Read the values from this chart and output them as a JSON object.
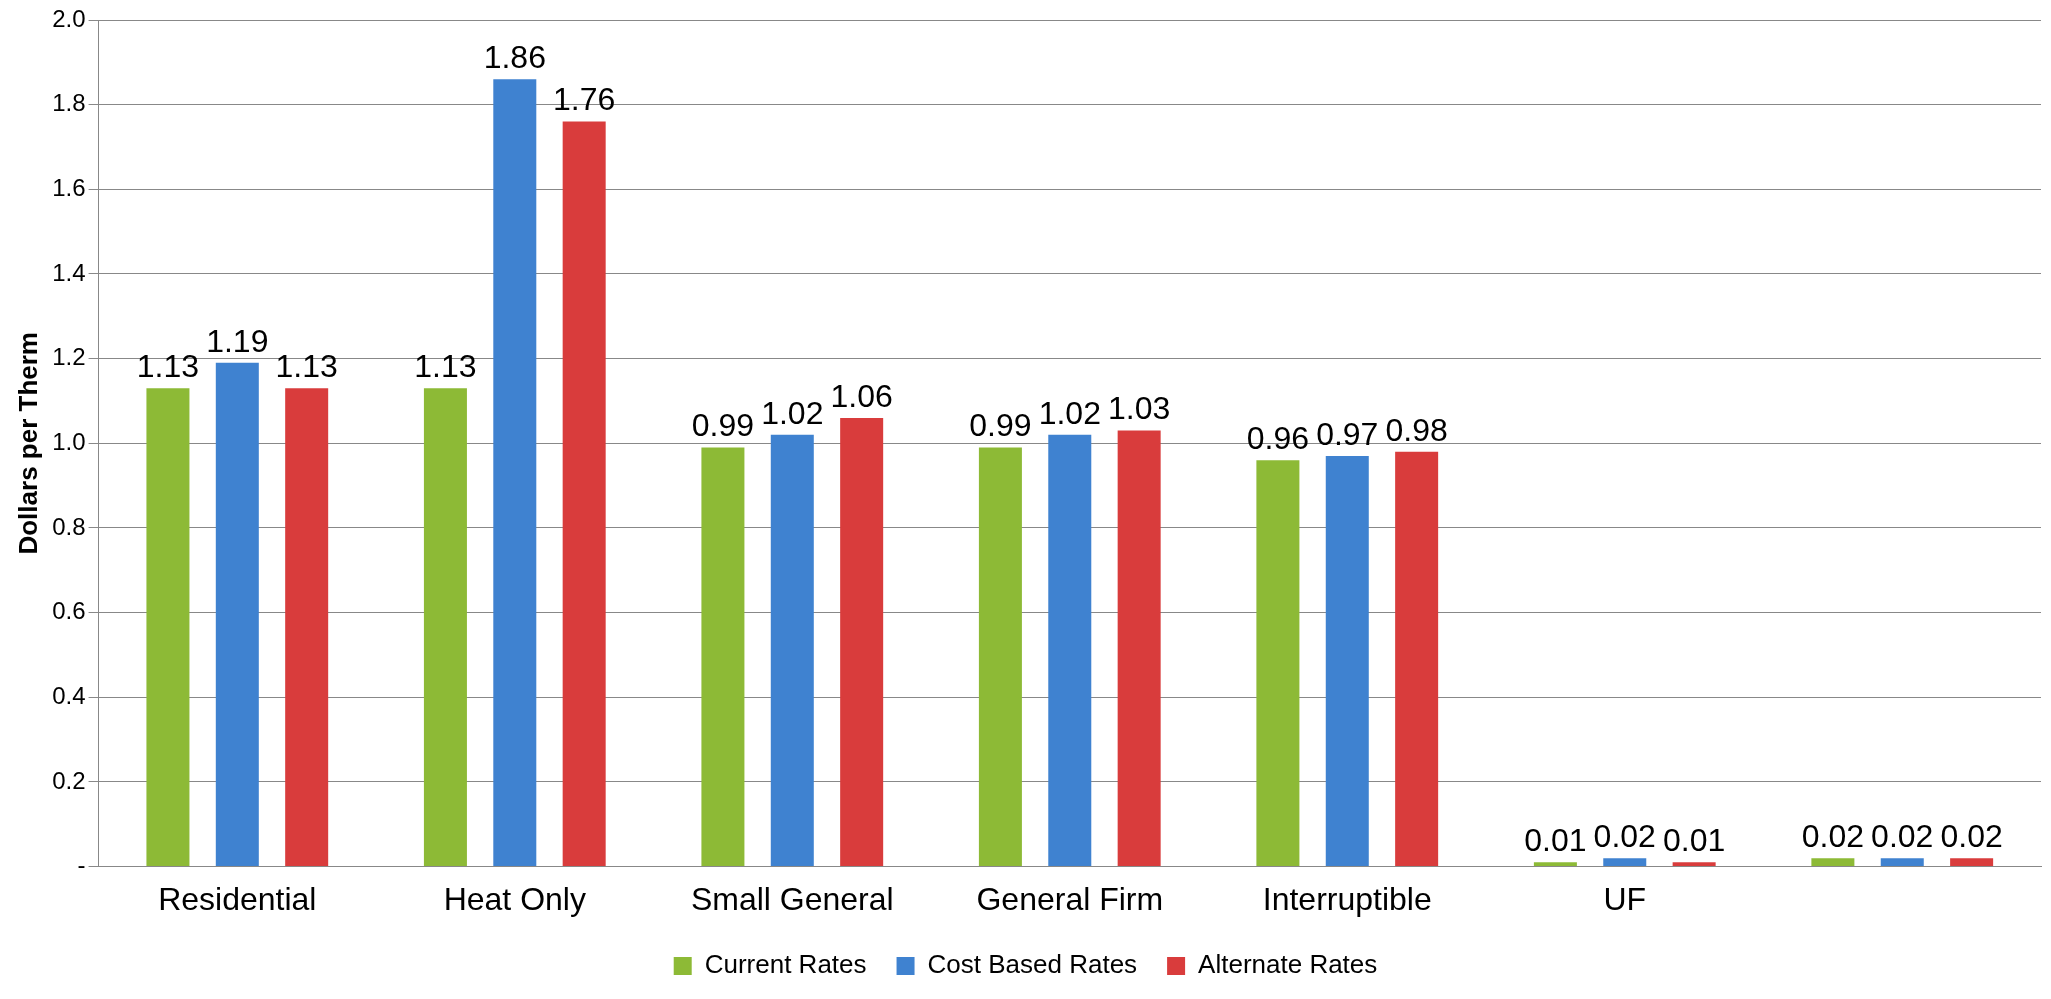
{
  "chart_data": {
    "type": "bar",
    "ylabel": "Dollars per Therm",
    "categories": [
      "Residential",
      "Heat Only",
      "Small General",
      "General Firm",
      "Interruptible",
      "UF",
      null
    ],
    "series": [
      {
        "name": "Current Rates",
        "color": "#8dba36",
        "values": [
          1.13,
          1.13,
          0.99,
          0.99,
          0.96,
          0.01,
          0.02
        ]
      },
      {
        "name": "Cost Based Rates",
        "color": "#3f82d0",
        "values": [
          1.19,
          1.86,
          1.02,
          1.02,
          0.97,
          0.02,
          0.02
        ]
      },
      {
        "name": "Alternate Rates",
        "color": "#d93c3c",
        "values": [
          1.13,
          1.76,
          1.06,
          1.03,
          0.98,
          0.01,
          0.02
        ]
      }
    ],
    "ylim": [
      0,
      2
    ],
    "yticks": [
      {
        "value": 0,
        "label": "-"
      },
      {
        "value": 0.2,
        "label": "0.2"
      },
      {
        "value": 0.4,
        "label": "0.4"
      },
      {
        "value": 0.6,
        "label": "0.6"
      },
      {
        "value": 0.8,
        "label": "0.8"
      },
      {
        "value": 1,
        "label": "1.0"
      },
      {
        "value": 1.2,
        "label": "1.2"
      },
      {
        "value": 1.4,
        "label": "1.4"
      },
      {
        "value": 1.6,
        "label": "1.6"
      },
      {
        "value": 1.8,
        "label": "1.8"
      },
      {
        "value": 2,
        "label": "2.0"
      }
    ],
    "grid": "y",
    "legend": "bottom",
    "data_labels": true
  }
}
